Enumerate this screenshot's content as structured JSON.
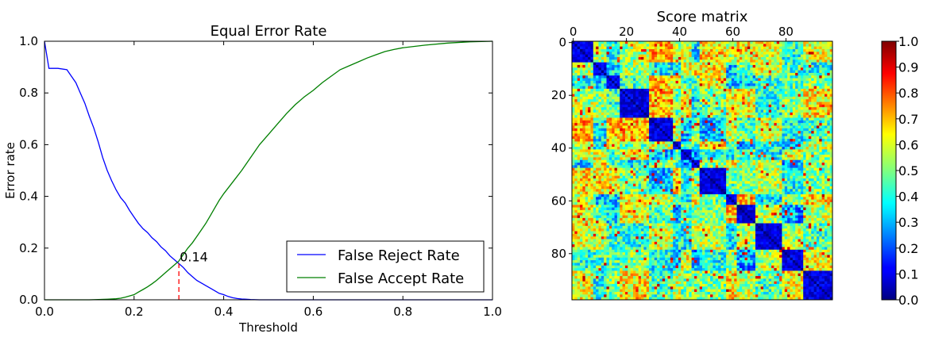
{
  "colors": {
    "frr": "#0000ff",
    "far": "#007f00",
    "eer_marker": "#ff0000",
    "axes": "#000000"
  },
  "chart_data": [
    {
      "type": "line",
      "title": "Equal Error Rate",
      "xlabel": "Threshold",
      "ylabel": "Error rate",
      "xlim": [
        0.0,
        1.0
      ],
      "ylim": [
        0.0,
        1.0
      ],
      "xticks": [
        "0.0",
        "0.2",
        "0.4",
        "0.6",
        "0.8",
        "1.0"
      ],
      "yticks": [
        "0.0",
        "0.2",
        "0.4",
        "0.6",
        "0.8",
        "1.0"
      ],
      "grid": false,
      "legend_position": "bottom-right",
      "series": [
        {
          "name": "False Reject Rate",
          "color": "#0000ff",
          "x": [
            0.0,
            0.01,
            0.03,
            0.05,
            0.06,
            0.07,
            0.08,
            0.09,
            0.1,
            0.11,
            0.12,
            0.13,
            0.14,
            0.15,
            0.16,
            0.17,
            0.18,
            0.19,
            0.2,
            0.21,
            0.22,
            0.23,
            0.24,
            0.25,
            0.26,
            0.27,
            0.28,
            0.29,
            0.3,
            0.31,
            0.32,
            0.33,
            0.34,
            0.35,
            0.36,
            0.37,
            0.38,
            0.39,
            0.4,
            0.41,
            0.42,
            0.43,
            0.44,
            0.45,
            0.46,
            0.48,
            0.5,
            0.55,
            0.6,
            0.7,
            0.8,
            0.9,
            1.0
          ],
          "y": [
            1.0,
            0.895,
            0.895,
            0.89,
            0.865,
            0.84,
            0.8,
            0.76,
            0.71,
            0.665,
            0.61,
            0.55,
            0.5,
            0.46,
            0.425,
            0.395,
            0.375,
            0.345,
            0.32,
            0.295,
            0.275,
            0.26,
            0.24,
            0.225,
            0.205,
            0.19,
            0.17,
            0.155,
            0.14,
            0.125,
            0.105,
            0.09,
            0.075,
            0.065,
            0.055,
            0.045,
            0.035,
            0.025,
            0.02,
            0.013,
            0.008,
            0.005,
            0.003,
            0.002,
            0.001,
            0.0,
            0.0,
            0.0,
            0.0,
            0.0,
            0.0,
            0.0,
            0.0
          ]
        },
        {
          "name": "False Accept Rate",
          "color": "#007f00",
          "x": [
            0.0,
            0.1,
            0.12,
            0.14,
            0.16,
            0.17,
            0.18,
            0.19,
            0.2,
            0.21,
            0.22,
            0.23,
            0.24,
            0.25,
            0.26,
            0.27,
            0.28,
            0.29,
            0.3,
            0.31,
            0.32,
            0.33,
            0.34,
            0.35,
            0.36,
            0.37,
            0.38,
            0.39,
            0.4,
            0.42,
            0.44,
            0.46,
            0.48,
            0.5,
            0.52,
            0.54,
            0.56,
            0.58,
            0.6,
            0.62,
            0.64,
            0.66,
            0.68,
            0.7,
            0.72,
            0.74,
            0.76,
            0.78,
            0.8,
            0.85,
            0.9,
            0.95,
            1.0
          ],
          "y": [
            0.0,
            0.0,
            0.001,
            0.002,
            0.004,
            0.006,
            0.01,
            0.015,
            0.02,
            0.03,
            0.04,
            0.05,
            0.062,
            0.075,
            0.09,
            0.105,
            0.12,
            0.135,
            0.15,
            0.175,
            0.2,
            0.22,
            0.245,
            0.27,
            0.295,
            0.325,
            0.355,
            0.385,
            0.41,
            0.455,
            0.5,
            0.55,
            0.6,
            0.64,
            0.68,
            0.72,
            0.755,
            0.785,
            0.81,
            0.84,
            0.865,
            0.89,
            0.905,
            0.92,
            0.935,
            0.948,
            0.96,
            0.968,
            0.975,
            0.985,
            0.993,
            0.998,
            1.0
          ]
        }
      ],
      "annotations": [
        {
          "text": "0.14",
          "x": 0.3,
          "y": 0.14
        }
      ],
      "eer_marker": {
        "x": 0.3,
        "y_from": 0.0,
        "y_to": 0.14,
        "style": "dashed",
        "color": "#ff0000"
      }
    },
    {
      "type": "heatmap",
      "title": "Score matrix",
      "xticks": [
        "0",
        "20",
        "40",
        "60",
        "80"
      ],
      "yticks": [
        "0",
        "20",
        "40",
        "60",
        "80"
      ],
      "tick_position_x": "top",
      "size": 98,
      "colormap": "jet",
      "clusters": [
        {
          "start": 0,
          "end": 8
        },
        {
          "start": 8,
          "end": 13
        },
        {
          "start": 13,
          "end": 18
        },
        {
          "start": 18,
          "end": 29
        },
        {
          "start": 29,
          "end": 38
        },
        {
          "start": 38,
          "end": 41
        },
        {
          "start": 41,
          "end": 45
        },
        {
          "start": 45,
          "end": 48
        },
        {
          "start": 48,
          "end": 58
        },
        {
          "start": 58,
          "end": 62
        },
        {
          "start": 62,
          "end": 69
        },
        {
          "start": 69,
          "end": 79
        },
        {
          "start": 79,
          "end": 87
        },
        {
          "start": 87,
          "end": 98
        }
      ],
      "colorbar": {
        "range": [
          0.0,
          1.0
        ],
        "ticks": [
          "0.0",
          "0.1",
          "0.2",
          "0.3",
          "0.4",
          "0.5",
          "0.6",
          "0.7",
          "0.8",
          "0.9",
          "1.0"
        ]
      }
    }
  ]
}
